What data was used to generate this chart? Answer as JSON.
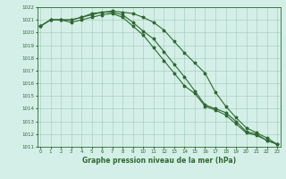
{
  "x": [
    0,
    1,
    2,
    3,
    4,
    5,
    6,
    7,
    8,
    9,
    10,
    11,
    12,
    13,
    14,
    15,
    16,
    17,
    18,
    19,
    20,
    21,
    22,
    23
  ],
  "line1": [
    1020.5,
    1021.0,
    1021.0,
    1020.8,
    1021.0,
    1021.2,
    1021.4,
    1021.5,
    1021.2,
    1020.5,
    1019.8,
    1018.8,
    1017.8,
    1016.8,
    1015.8,
    1015.2,
    1014.2,
    1013.9,
    1013.5,
    1012.8,
    1012.1,
    1011.9,
    1011.5,
    1011.2
  ],
  "line2": [
    1020.5,
    1021.0,
    1021.0,
    1021.0,
    1021.2,
    1021.4,
    1021.6,
    1021.6,
    1021.4,
    1020.8,
    1020.1,
    1019.5,
    1018.5,
    1017.5,
    1016.5,
    1015.4,
    1014.3,
    1014.0,
    1013.7,
    1013.0,
    1012.2,
    1012.0,
    1011.5,
    1011.2
  ],
  "line3": [
    1020.5,
    1021.0,
    1021.0,
    1021.0,
    1021.2,
    1021.5,
    1021.6,
    1021.7,
    1021.6,
    1021.5,
    1021.2,
    1020.8,
    1020.2,
    1019.3,
    1018.4,
    1017.6,
    1016.8,
    1015.3,
    1014.2,
    1013.3,
    1012.5,
    1012.1,
    1011.7,
    1011.2
  ],
  "ylim": [
    1011,
    1022
  ],
  "yticks": [
    1011,
    1012,
    1013,
    1014,
    1015,
    1016,
    1017,
    1018,
    1019,
    1020,
    1021,
    1022
  ],
  "xticks": [
    0,
    1,
    2,
    3,
    4,
    5,
    6,
    7,
    8,
    9,
    10,
    11,
    12,
    13,
    14,
    15,
    16,
    17,
    18,
    19,
    20,
    21,
    22,
    23
  ],
  "xlabel": "Graphe pression niveau de la mer (hPa)",
  "line_color": "#2d6a2d",
  "bg_color": "#d4efe8",
  "grid_color": "#a0c8b8",
  "marker": "*",
  "marker_size": 2.5,
  "line_width": 0.8
}
